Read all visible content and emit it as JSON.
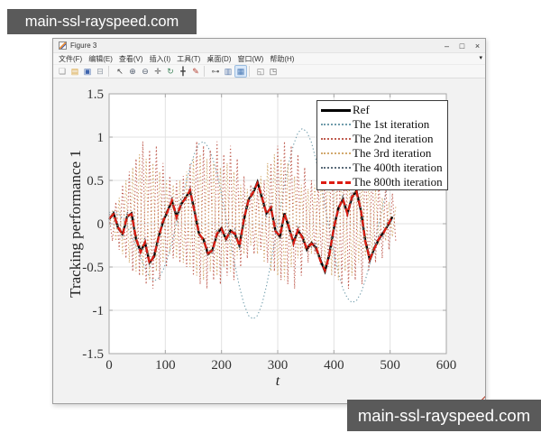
{
  "watermark": {
    "text": "main-ssl-rayspeed.com"
  },
  "window": {
    "title": "Figure 3",
    "controls": {
      "minimize": "–",
      "maximize": "□",
      "close": "×"
    },
    "menu": [
      "文件(F)",
      "编辑(E)",
      "查看(V)",
      "插入(I)",
      "工具(T)",
      "桌面(D)",
      "窗口(W)",
      "帮助(H)"
    ],
    "menu_overflow_icon": "▾",
    "toolbar": [
      {
        "name": "new-file-icon",
        "glyph": "❏",
        "color": "#8f8f8f"
      },
      {
        "name": "open-file-icon",
        "glyph": "▤",
        "color": "#d9a43b"
      },
      {
        "name": "save-icon",
        "glyph": "▣",
        "color": "#3e64ad"
      },
      {
        "name": "print-icon",
        "glyph": "⊟",
        "color": "#8f98a3"
      },
      {
        "type": "separator"
      },
      {
        "name": "edit-plot-icon",
        "glyph": "↖",
        "color": "#444444"
      },
      {
        "name": "zoom-in-icon",
        "glyph": "⊕",
        "color": "#556070"
      },
      {
        "name": "zoom-out-icon",
        "glyph": "⊖",
        "color": "#556070"
      },
      {
        "name": "pan-icon",
        "glyph": "✛",
        "color": "#555555"
      },
      {
        "name": "rotate-3d-icon",
        "glyph": "↻",
        "color": "#44885f"
      },
      {
        "name": "data-cursor-icon",
        "glyph": "╋",
        "color": "#444444"
      },
      {
        "name": "brush-icon",
        "glyph": "✎",
        "color": "#b33b2e"
      },
      {
        "type": "separator"
      },
      {
        "name": "link-plot-icon",
        "glyph": "⊶",
        "color": "#666666"
      },
      {
        "name": "insert-colorbar-icon",
        "glyph": "▥",
        "color": "#5577aa"
      },
      {
        "name": "insert-legend-icon",
        "glyph": "▦",
        "color": "#4a7ab5",
        "highlight": true
      },
      {
        "type": "separator"
      },
      {
        "name": "dock-figure-icon",
        "glyph": "◱",
        "color": "#777777"
      },
      {
        "name": "undock-figure-icon",
        "glyph": "◳",
        "color": "#555555"
      }
    ]
  },
  "chart_data": {
    "type": "line",
    "title": "",
    "xlabel": "t",
    "ylabel": "Tracking performance 1",
    "xlim": [
      0,
      600
    ],
    "ylim": [
      -1.5,
      1.5
    ],
    "xticks": [
      0,
      100,
      200,
      300,
      400,
      500,
      600
    ],
    "yticks": [
      -1.5,
      -1,
      -0.5,
      0,
      0.5,
      1,
      1.5
    ],
    "grid": true,
    "grid_color": "#e2e2e2",
    "axis_color": "#a6a6a6",
    "legend_position": "top-right",
    "series": [
      {
        "id": "ref",
        "name": "Ref",
        "color": "#000000",
        "line_style": "solid",
        "line_width": 2.4,
        "x_start": 0,
        "x_step": 8,
        "y": [
          0.05,
          0.12,
          -0.05,
          -0.12,
          0.08,
          0.12,
          -0.18,
          -0.32,
          -0.22,
          -0.45,
          -0.38,
          -0.15,
          0.02,
          0.15,
          0.26,
          0.08,
          0.22,
          0.3,
          0.38,
          0.15,
          -0.12,
          -0.18,
          -0.35,
          -0.3,
          -0.12,
          -0.05,
          -0.18,
          -0.08,
          -0.12,
          -0.25,
          0.05,
          0.28,
          0.35,
          0.48,
          0.3,
          0.12,
          0.18,
          -0.08,
          -0.15,
          0.12,
          -0.05,
          -0.22,
          -0.08,
          -0.15,
          -0.3,
          -0.22,
          -0.28,
          -0.42,
          -0.55,
          -0.35,
          -0.05,
          0.18,
          0.28,
          0.12,
          0.3,
          0.38,
          0.15,
          -0.2,
          -0.42,
          -0.28,
          -0.18,
          -0.1,
          -0.02,
          0.08
        ]
      },
      {
        "id": "iter1",
        "name": "The 1st iteration",
        "color": "#6f9cab",
        "line_style": "dotted",
        "line_width": 1.1,
        "x_start": 0,
        "x_step": 8,
        "y": [
          0.13,
          0.14,
          0.12,
          0.06,
          -0.02,
          -0.14,
          -0.26,
          -0.39,
          -0.51,
          -0.62,
          -0.66,
          -0.63,
          -0.54,
          -0.4,
          -0.22,
          0,
          0.23,
          0.45,
          0.65,
          0.81,
          0.92,
          0.95,
          0.89,
          0.76,
          0.58,
          0.34,
          0.07,
          -0.21,
          -0.48,
          -0.73,
          -0.93,
          -1.06,
          -1.1,
          -1.06,
          -0.93,
          -0.72,
          -0.45,
          -0.15,
          0.15,
          0.45,
          0.71,
          0.91,
          1.05,
          1.1,
          1.06,
          0.94,
          0.74,
          0.49,
          0.21,
          -0.07,
          -0.34,
          -0.57,
          -0.75,
          -0.86,
          -0.91,
          -0.89,
          -0.8,
          -0.65,
          -0.46,
          -0.24,
          0,
          0.23,
          0.45,
          0.63
        ]
      },
      {
        "id": "iter2",
        "name": "The 2nd iteration",
        "color": "#bf5c50",
        "line_style": "dotted",
        "line_width": 1.1,
        "x_start": 0,
        "x_step": 6,
        "y": [
          0.1,
          -0.2,
          0.25,
          -0.3,
          0.45,
          -0.4,
          0.6,
          -0.55,
          0.75,
          -0.6,
          0.95,
          -0.7,
          0.85,
          -0.75,
          0.9,
          -0.65,
          0.7,
          -0.5,
          0.55,
          -0.4,
          0.5,
          -0.45,
          0.55,
          -0.5,
          0.7,
          -0.6,
          0.95,
          -0.7,
          0.9,
          -0.75,
          0.85,
          -0.65,
          0.95,
          -0.7,
          0.8,
          -0.6,
          0.9,
          -0.65,
          0.75,
          -0.5,
          0.55,
          -0.4,
          0.45,
          -0.35,
          0.4,
          -0.3,
          0.5,
          -0.45,
          0.7,
          -0.55,
          0.9,
          -0.65,
          0.95,
          -0.7,
          0.9,
          -0.75,
          0.8,
          -0.6,
          0.65,
          -0.45,
          0.5,
          -0.35,
          0.45,
          -0.4,
          0.55,
          -0.5,
          0.75,
          -0.6,
          0.9,
          -0.7,
          0.95,
          -0.75,
          0.9,
          -0.65,
          0.85,
          -0.7,
          0.75,
          -0.55,
          0.6,
          -0.45,
          0.5,
          -0.4,
          0.45,
          -0.3,
          0.35,
          -0.2
        ]
      },
      {
        "id": "iter3",
        "name": "The 3rd iteration",
        "color": "#d2a96e",
        "line_style": "dotted",
        "line_width": 1.1,
        "x_start": 0,
        "x_step": 6,
        "y": [
          -0.05,
          0.15,
          -0.2,
          0.3,
          -0.35,
          0.5,
          -0.45,
          0.65,
          -0.55,
          0.8,
          -0.6,
          0.75,
          -0.65,
          0.7,
          -0.55,
          0.6,
          -0.45,
          0.5,
          -0.35,
          0.45,
          -0.4,
          0.5,
          -0.45,
          0.6,
          -0.5,
          0.75,
          -0.6,
          0.8,
          -0.65,
          0.75,
          -0.55,
          0.7,
          -0.6,
          0.65,
          -0.5,
          0.7,
          -0.55,
          0.6,
          -0.4,
          0.45,
          -0.35,
          0.4,
          -0.25,
          0.4,
          -0.35,
          0.55,
          -0.45,
          0.7,
          -0.55,
          0.8,
          -0.6,
          0.75,
          -0.65,
          0.7,
          -0.5,
          0.55,
          -0.4,
          0.45,
          -0.3,
          0.4,
          -0.35,
          0.45,
          -0.4,
          0.6,
          -0.5,
          0.75,
          -0.6,
          0.8,
          -0.65,
          0.75,
          -0.55,
          0.7,
          -0.6,
          0.65,
          -0.45,
          0.55,
          -0.4,
          0.5,
          -0.35,
          0.4,
          -0.25,
          0.3,
          -0.2,
          0.25,
          -0.15,
          0.2
        ]
      },
      {
        "id": "iter400",
        "name": "The 400th iteration",
        "color": "#5b6b79",
        "line_style": "dotted",
        "line_width": 1.1,
        "x_start": 0,
        "x_step": 8,
        "y": [
          0.11,
          0.07,
          0.01,
          -0.17,
          0.14,
          0.07,
          -0.12,
          -0.37,
          -0.16,
          -0.5,
          -0.32,
          -0.2,
          0.08,
          0.1,
          0.32,
          0.03,
          0.28,
          0.25,
          0.44,
          0.1,
          -0.06,
          -0.23,
          -0.29,
          -0.35,
          -0.06,
          -0.1,
          -0.12,
          -0.13,
          -0.06,
          -0.3,
          0.11,
          0.23,
          0.41,
          0.43,
          0.36,
          0.07,
          0.24,
          -0.13,
          -0.09,
          0.07,
          0.01,
          -0.27,
          -0.02,
          -0.2,
          -0.24,
          -0.27,
          -0.22,
          -0.47,
          -0.49,
          -0.4,
          0.01,
          0.13,
          0.34,
          0.07,
          0.36,
          0.33,
          0.21,
          -0.25,
          -0.36,
          -0.33,
          -0.12,
          -0.15,
          0.04,
          0.03
        ]
      },
      {
        "id": "iter800",
        "name": "The 800th iteration",
        "color": "#dd1c12",
        "line_style": "dashed",
        "line_width": 2.2,
        "x_start": 0,
        "x_step": 8,
        "y": [
          0.06,
          0.11,
          -0.04,
          -0.13,
          0.09,
          0.11,
          -0.17,
          -0.33,
          -0.21,
          -0.46,
          -0.37,
          -0.16,
          0.03,
          0.14,
          0.27,
          0.07,
          0.23,
          0.29,
          0.39,
          0.14,
          -0.11,
          -0.19,
          -0.34,
          -0.31,
          -0.11,
          -0.06,
          -0.17,
          -0.09,
          -0.11,
          -0.26,
          0.06,
          0.27,
          0.36,
          0.47,
          0.31,
          0.11,
          0.19,
          -0.09,
          -0.14,
          0.11,
          -0.04,
          -0.23,
          -0.07,
          -0.16,
          -0.29,
          -0.23,
          -0.27,
          -0.43,
          -0.54,
          -0.36,
          -0.04,
          0.17,
          0.29,
          0.11,
          0.31,
          0.37,
          0.16,
          -0.21,
          -0.41,
          -0.29,
          -0.17,
          -0.11,
          -0.01,
          0.09
        ]
      }
    ]
  }
}
